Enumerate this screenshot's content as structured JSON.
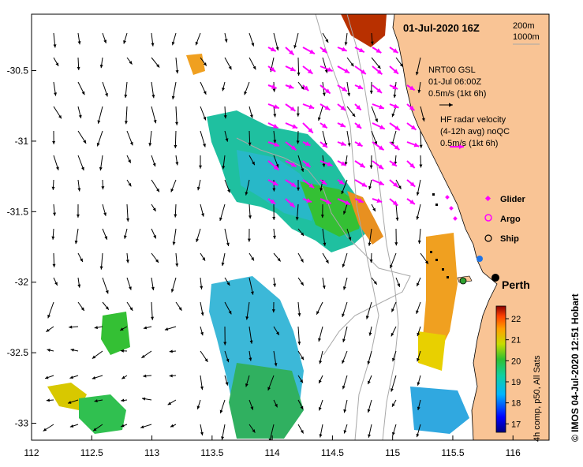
{
  "title": "01-Jul-2020 16Z",
  "isobath_legend": [
    "200m",
    "1000m"
  ],
  "gsl_legend": {
    "line1": "NRT00 GSL",
    "line2": "01-Jul 06:00Z",
    "line3": "0.5m/s (1kt 6h)"
  },
  "hf_legend": {
    "line1": "HF radar velocity",
    "line2": "(4-12h avg) noQC",
    "line3": "0.5m/s (1kt 6h)"
  },
  "symbols_legend": [
    {
      "label": "Glider",
      "symbol": "diamond",
      "color": "#ff00ff"
    },
    {
      "label": "Argo",
      "symbol": "circle",
      "color": "#ff00ff"
    },
    {
      "label": "Ship",
      "symbol": "circle",
      "color": "#000000"
    }
  ],
  "city": "Perth",
  "colorbar": {
    "title": "4h comp, p50, All Sats",
    "ticks": [
      "17",
      "18",
      "19",
      "20",
      "21",
      "22"
    ],
    "range": [
      16.6,
      22.6
    ]
  },
  "credit": "© IMOS 04-Jul-2020 12:51 Hobart",
  "x_ticks": [
    "112",
    "112.5",
    "113",
    "113.5",
    "114",
    "114.5",
    "115",
    "115.5",
    "116"
  ],
  "y_ticks": [
    "-30.5",
    "-31",
    "-31.5",
    "-32",
    "-32.5",
    "-33"
  ],
  "colors": {
    "land": "#f9c495",
    "hf_arrow": "#ff00ff",
    "gsl_arrow": "#000000",
    "isobath": "#a8a8a8",
    "glider": "#ff00ff",
    "argo": "#ff00ff",
    "ship": "#000000",
    "mooring_blue": "#1e73e6"
  },
  "map_data": {
    "lon_range": [
      112,
      116.3
    ],
    "lat_range": [
      -33.12,
      -30.1
    ]
  }
}
